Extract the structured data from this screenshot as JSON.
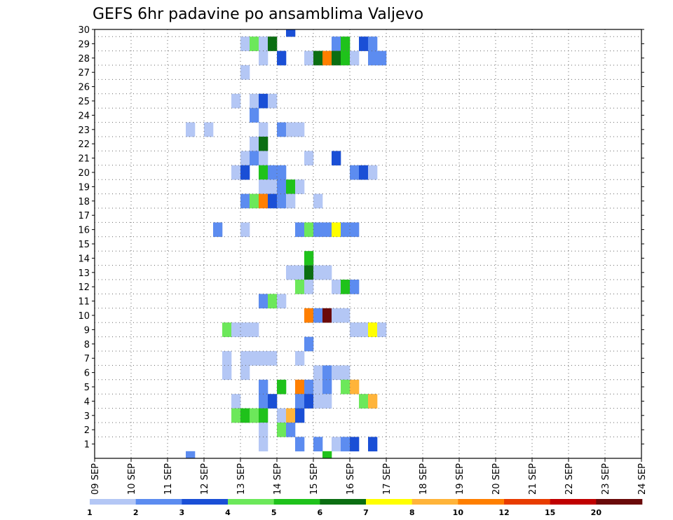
{
  "chart_data": {
    "type": "heatmap",
    "title": "GEFS 6hr padavine po ansamblima Valjevo",
    "xlabel": "",
    "ylabel": "",
    "x_tick_labels": [
      "09 SEP",
      "10 SEP",
      "11 SEP",
      "12 SEP",
      "13 SEP",
      "14 SEP",
      "15 SEP",
      "16 SEP",
      "17 SEP",
      "18 SEP",
      "19 SEP",
      "20 SEP",
      "21 SEP",
      "22 SEP",
      "23 SEP",
      "24 SEP"
    ],
    "y_tick_labels": [
      "1",
      "2",
      "3",
      "4",
      "5",
      "6",
      "7",
      "8",
      "9",
      "10",
      "11",
      "12",
      "13",
      "14",
      "15",
      "16",
      "17",
      "18",
      "19",
      "20",
      "21",
      "22",
      "23",
      "24",
      "25",
      "26",
      "27",
      "28",
      "29",
      "30"
    ],
    "grid": true,
    "legend_placement": "bottom",
    "colorbar": {
      "labels": [
        "1",
        "2",
        "3",
        "4",
        "5",
        "6",
        "7",
        "8",
        "10",
        "12",
        "15",
        "20"
      ],
      "colors": [
        "#b4c7f5",
        "#5c8cf0",
        "#1a4fd6",
        "#6ce85a",
        "#1fc21b",
        "#0b6e12",
        "#ffff00",
        "#ffb43a",
        "#ff7f00",
        "#e83c00",
        "#c00000",
        "#6a0a0a"
      ]
    },
    "axis_x_range": [
      0,
      60
    ],
    "axis_y_range": [
      0,
      30
    ],
    "cell_units": "x = 6-hour step index from 09 SEP 00z; y = ensemble member; v = colour class",
    "cells": [
      {
        "x": 21,
        "y": 30,
        "v": 3
      },
      {
        "x": 16,
        "y": 29,
        "v": 1
      },
      {
        "x": 17,
        "y": 29,
        "v": 4
      },
      {
        "x": 18,
        "y": 29,
        "v": 1
      },
      {
        "x": 19,
        "y": 29,
        "v": 6
      },
      {
        "x": 26,
        "y": 29,
        "v": 2
      },
      {
        "x": 27,
        "y": 29,
        "v": 5
      },
      {
        "x": 29,
        "y": 29,
        "v": 3
      },
      {
        "x": 30,
        "y": 29,
        "v": 2
      },
      {
        "x": 18,
        "y": 28,
        "v": 1
      },
      {
        "x": 20,
        "y": 28,
        "v": 3
      },
      {
        "x": 23,
        "y": 28,
        "v": 1
      },
      {
        "x": 24,
        "y": 28,
        "v": 6
      },
      {
        "x": 25,
        "y": 28,
        "v": 9
      },
      {
        "x": 26,
        "y": 28,
        "v": 6
      },
      {
        "x": 27,
        "y": 28,
        "v": 5
      },
      {
        "x": 28,
        "y": 28,
        "v": 1
      },
      {
        "x": 30,
        "y": 28,
        "v": 2
      },
      {
        "x": 31,
        "y": 28,
        "v": 2
      },
      {
        "x": 16,
        "y": 27,
        "v": 1
      },
      {
        "x": 15,
        "y": 25,
        "v": 1
      },
      {
        "x": 17,
        "y": 25,
        "v": 1
      },
      {
        "x": 18,
        "y": 25,
        "v": 3
      },
      {
        "x": 19,
        "y": 25,
        "v": 1
      },
      {
        "x": 17,
        "y": 24,
        "v": 2
      },
      {
        "x": 10,
        "y": 23,
        "v": 1
      },
      {
        "x": 12,
        "y": 23,
        "v": 1
      },
      {
        "x": 18,
        "y": 23,
        "v": 1
      },
      {
        "x": 20,
        "y": 23,
        "v": 2
      },
      {
        "x": 21,
        "y": 23,
        "v": 1
      },
      {
        "x": 22,
        "y": 23,
        "v": 1
      },
      {
        "x": 17,
        "y": 22,
        "v": 1
      },
      {
        "x": 18,
        "y": 22,
        "v": 6
      },
      {
        "x": 16,
        "y": 21,
        "v": 1
      },
      {
        "x": 17,
        "y": 21,
        "v": 2
      },
      {
        "x": 18,
        "y": 21,
        "v": 1
      },
      {
        "x": 23,
        "y": 21,
        "v": 1
      },
      {
        "x": 26,
        "y": 21,
        "v": 3
      },
      {
        "x": 15,
        "y": 20,
        "v": 1
      },
      {
        "x": 16,
        "y": 20,
        "v": 3
      },
      {
        "x": 18,
        "y": 20,
        "v": 5
      },
      {
        "x": 19,
        "y": 20,
        "v": 2
      },
      {
        "x": 20,
        "y": 20,
        "v": 2
      },
      {
        "x": 28,
        "y": 20,
        "v": 2
      },
      {
        "x": 29,
        "y": 20,
        "v": 3
      },
      {
        "x": 30,
        "y": 20,
        "v": 1
      },
      {
        "x": 18,
        "y": 19,
        "v": 1
      },
      {
        "x": 19,
        "y": 19,
        "v": 1
      },
      {
        "x": 20,
        "y": 19,
        "v": 2
      },
      {
        "x": 21,
        "y": 19,
        "v": 5
      },
      {
        "x": 22,
        "y": 19,
        "v": 1
      },
      {
        "x": 16,
        "y": 18,
        "v": 2
      },
      {
        "x": 17,
        "y": 18,
        "v": 4
      },
      {
        "x": 18,
        "y": 18,
        "v": 9
      },
      {
        "x": 19,
        "y": 18,
        "v": 3
      },
      {
        "x": 20,
        "y": 18,
        "v": 2
      },
      {
        "x": 21,
        "y": 18,
        "v": 1
      },
      {
        "x": 24,
        "y": 18,
        "v": 1
      },
      {
        "x": 13,
        "y": 16,
        "v": 2
      },
      {
        "x": 16,
        "y": 16,
        "v": 1
      },
      {
        "x": 22,
        "y": 16,
        "v": 2
      },
      {
        "x": 23,
        "y": 16,
        "v": 4
      },
      {
        "x": 24,
        "y": 16,
        "v": 2
      },
      {
        "x": 25,
        "y": 16,
        "v": 2
      },
      {
        "x": 26,
        "y": 16,
        "v": 7
      },
      {
        "x": 27,
        "y": 16,
        "v": 2
      },
      {
        "x": 28,
        "y": 16,
        "v": 2
      },
      {
        "x": 23,
        "y": 14,
        "v": 5
      },
      {
        "x": 21,
        "y": 13,
        "v": 1
      },
      {
        "x": 22,
        "y": 13,
        "v": 1
      },
      {
        "x": 23,
        "y": 13,
        "v": 6
      },
      {
        "x": 24,
        "y": 13,
        "v": 1
      },
      {
        "x": 25,
        "y": 13,
        "v": 1
      },
      {
        "x": 22,
        "y": 12,
        "v": 4
      },
      {
        "x": 23,
        "y": 12,
        "v": 1
      },
      {
        "x": 26,
        "y": 12,
        "v": 1
      },
      {
        "x": 27,
        "y": 12,
        "v": 5
      },
      {
        "x": 28,
        "y": 12,
        "v": 2
      },
      {
        "x": 18,
        "y": 11,
        "v": 2
      },
      {
        "x": 19,
        "y": 11,
        "v": 4
      },
      {
        "x": 20,
        "y": 11,
        "v": 1
      },
      {
        "x": 23,
        "y": 10,
        "v": 9
      },
      {
        "x": 24,
        "y": 10,
        "v": 2
      },
      {
        "x": 25,
        "y": 10,
        "v": 12
      },
      {
        "x": 26,
        "y": 10,
        "v": 1
      },
      {
        "x": 27,
        "y": 10,
        "v": 1
      },
      {
        "x": 14,
        "y": 9,
        "v": 4
      },
      {
        "x": 15,
        "y": 9,
        "v": 1
      },
      {
        "x": 16,
        "y": 9,
        "v": 1
      },
      {
        "x": 17,
        "y": 9,
        "v": 1
      },
      {
        "x": 28,
        "y": 9,
        "v": 1
      },
      {
        "x": 29,
        "y": 9,
        "v": 1
      },
      {
        "x": 30,
        "y": 9,
        "v": 7
      },
      {
        "x": 31,
        "y": 9,
        "v": 1
      },
      {
        "x": 23,
        "y": 8,
        "v": 2
      },
      {
        "x": 14,
        "y": 7,
        "v": 1
      },
      {
        "x": 16,
        "y": 7,
        "v": 1
      },
      {
        "x": 17,
        "y": 7,
        "v": 1
      },
      {
        "x": 18,
        "y": 7,
        "v": 1
      },
      {
        "x": 19,
        "y": 7,
        "v": 1
      },
      {
        "x": 22,
        "y": 7,
        "v": 1
      },
      {
        "x": 14,
        "y": 6,
        "v": 1
      },
      {
        "x": 16,
        "y": 6,
        "v": 1
      },
      {
        "x": 24,
        "y": 6,
        "v": 1
      },
      {
        "x": 25,
        "y": 6,
        "v": 2
      },
      {
        "x": 26,
        "y": 6,
        "v": 1
      },
      {
        "x": 27,
        "y": 6,
        "v": 1
      },
      {
        "x": 18,
        "y": 5,
        "v": 2
      },
      {
        "x": 20,
        "y": 5,
        "v": 5
      },
      {
        "x": 22,
        "y": 5,
        "v": 9
      },
      {
        "x": 23,
        "y": 5,
        "v": 2
      },
      {
        "x": 24,
        "y": 5,
        "v": 1
      },
      {
        "x": 25,
        "y": 5,
        "v": 2
      },
      {
        "x": 27,
        "y": 5,
        "v": 4
      },
      {
        "x": 28,
        "y": 5,
        "v": 8
      },
      {
        "x": 15,
        "y": 4,
        "v": 1
      },
      {
        "x": 18,
        "y": 4,
        "v": 2
      },
      {
        "x": 19,
        "y": 4,
        "v": 3
      },
      {
        "x": 22,
        "y": 4,
        "v": 2
      },
      {
        "x": 23,
        "y": 4,
        "v": 3
      },
      {
        "x": 24,
        "y": 4,
        "v": 1
      },
      {
        "x": 25,
        "y": 4,
        "v": 1
      },
      {
        "x": 29,
        "y": 4,
        "v": 4
      },
      {
        "x": 30,
        "y": 4,
        "v": 8
      },
      {
        "x": 15,
        "y": 3,
        "v": 4
      },
      {
        "x": 16,
        "y": 3,
        "v": 5
      },
      {
        "x": 17,
        "y": 3,
        "v": 4
      },
      {
        "x": 18,
        "y": 3,
        "v": 5
      },
      {
        "x": 20,
        "y": 3,
        "v": 1
      },
      {
        "x": 21,
        "y": 3,
        "v": 8
      },
      {
        "x": 22,
        "y": 3,
        "v": 3
      },
      {
        "x": 18,
        "y": 2,
        "v": 1
      },
      {
        "x": 20,
        "y": 2,
        "v": 4
      },
      {
        "x": 21,
        "y": 2,
        "v": 2
      },
      {
        "x": 18,
        "y": 1,
        "v": 1
      },
      {
        "x": 22,
        "y": 1,
        "v": 2
      },
      {
        "x": 24,
        "y": 1,
        "v": 2
      },
      {
        "x": 26,
        "y": 1,
        "v": 1
      },
      {
        "x": 27,
        "y": 1,
        "v": 2
      },
      {
        "x": 28,
        "y": 1,
        "v": 3
      },
      {
        "x": 30,
        "y": 1,
        "v": 3
      },
      {
        "x": 10,
        "y": 0,
        "v": 2
      },
      {
        "x": 25,
        "y": 0,
        "v": 5
      }
    ]
  }
}
